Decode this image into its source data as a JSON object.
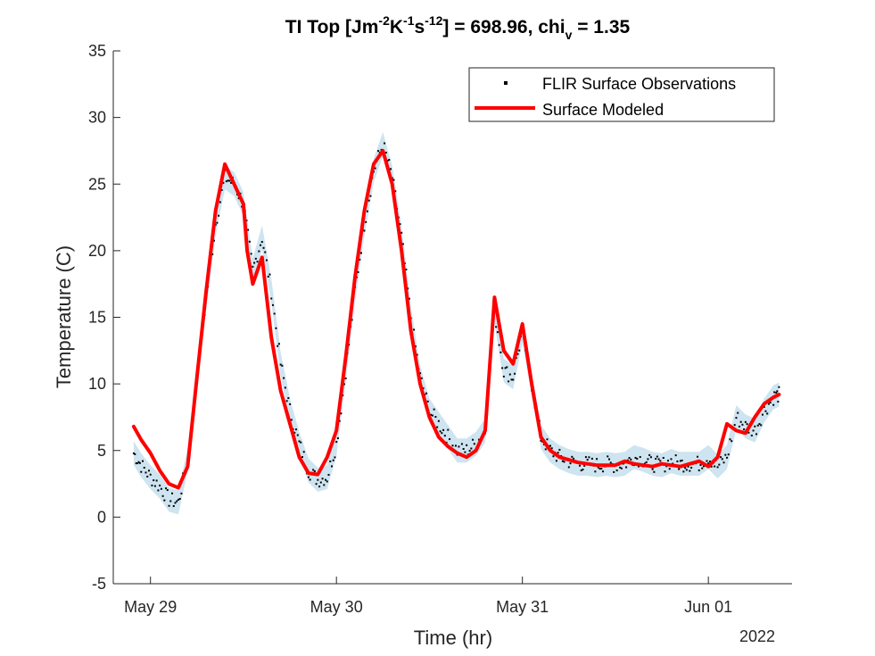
{
  "chart_data": {
    "type": "line",
    "title_main": "TI Top [Jm",
    "title_sup1": "-2",
    "title_k": "K",
    "title_sup2": "-1",
    "title_s": "s",
    "title_sup3": "-12",
    "title_eq": "] = 698.96, chi",
    "title_sub": "v",
    "title_tail": " = 1.35",
    "xlabel": "Time (hr)",
    "ylabel": "Temperature (C)",
    "year_label": "2022",
    "xlim": [
      -0.2,
      3.45
    ],
    "ylim": [
      -5,
      35
    ],
    "yticks": [
      -5,
      0,
      5,
      10,
      15,
      20,
      25,
      30,
      35
    ],
    "xticks": [
      {
        "value": 0,
        "label": "May 29"
      },
      {
        "value": 1,
        "label": "May 30"
      },
      {
        "value": 2,
        "label": "May 31"
      },
      {
        "value": 3,
        "label": "Jun 01"
      }
    ],
    "x_units": "days since May 29 00:00",
    "grid": false,
    "legend_position": "top-right",
    "colors": {
      "observations": "#000000",
      "modeled": "#ff0000",
      "uncertainty": "#a6cee3"
    },
    "series": [
      {
        "name": "FLIR Surface Observations",
        "style": "points",
        "x": [
          -0.09,
          -0.05,
          0.0,
          0.05,
          0.1,
          0.15,
          0.2,
          0.25,
          0.3,
          0.35,
          0.4,
          0.45,
          0.5,
          0.55,
          0.6,
          0.65,
          0.7,
          0.75,
          0.8,
          0.85,
          0.9,
          0.95,
          1.0,
          1.05,
          1.1,
          1.15,
          1.2,
          1.25,
          1.3,
          1.35,
          1.4,
          1.45,
          1.5,
          1.55,
          1.6,
          1.65,
          1.7,
          1.75,
          1.8,
          1.85,
          1.9,
          1.95,
          2.0,
          2.05,
          2.1,
          2.15,
          2.2,
          2.25,
          2.3,
          2.35,
          2.4,
          2.45,
          2.5,
          2.55,
          2.6,
          2.65,
          2.7,
          2.75,
          2.8,
          2.85,
          2.9,
          2.95,
          3.0,
          3.05,
          3.1,
          3.15,
          3.2,
          3.25,
          3.3,
          3.35,
          3.38
        ],
        "y": [
          4.8,
          3.9,
          3.0,
          2.3,
          1.3,
          1.1,
          4.3,
          10.5,
          16.5,
          22.0,
          25.5,
          25.0,
          23.5,
          18.5,
          21.0,
          17.0,
          11.5,
          8.0,
          5.5,
          3.5,
          2.8,
          3.0,
          5.5,
          11.0,
          17.0,
          22.0,
          26.0,
          28.0,
          25.5,
          21.0,
          15.0,
          10.5,
          8.0,
          7.0,
          6.0,
          5.0,
          5.0,
          5.5,
          6.5,
          15.5,
          11.0,
          10.5,
          14.0,
          10.0,
          6.0,
          5.0,
          4.5,
          4.2,
          4.0,
          4.0,
          3.9,
          4.0,
          3.9,
          4.0,
          4.5,
          4.3,
          4.0,
          3.9,
          4.2,
          4.0,
          4.0,
          4.0,
          4.5,
          3.8,
          4.5,
          7.5,
          6.8,
          6.5,
          8.0,
          9.0,
          9.2
        ]
      },
      {
        "name": "Surface Modeled",
        "style": "line",
        "x": [
          -0.09,
          -0.05,
          0.0,
          0.05,
          0.1,
          0.15,
          0.2,
          0.25,
          0.3,
          0.35,
          0.4,
          0.45,
          0.5,
          0.52,
          0.55,
          0.6,
          0.65,
          0.7,
          0.75,
          0.8,
          0.85,
          0.9,
          0.95,
          1.0,
          1.05,
          1.1,
          1.15,
          1.2,
          1.25,
          1.3,
          1.35,
          1.4,
          1.45,
          1.5,
          1.55,
          1.6,
          1.65,
          1.7,
          1.75,
          1.8,
          1.85,
          1.9,
          1.95,
          2.0,
          2.05,
          2.1,
          2.15,
          2.2,
          2.25,
          2.3,
          2.35,
          2.4,
          2.45,
          2.5,
          2.55,
          2.6,
          2.65,
          2.7,
          2.75,
          2.8,
          2.85,
          2.9,
          2.95,
          3.0,
          3.05,
          3.1,
          3.15,
          3.2,
          3.25,
          3.3,
          3.35,
          3.38
        ],
        "y": [
          6.8,
          5.8,
          4.8,
          3.5,
          2.5,
          2.2,
          3.8,
          10.5,
          17.0,
          23.0,
          26.5,
          25.0,
          23.5,
          20.0,
          17.5,
          19.5,
          13.5,
          9.5,
          7.0,
          4.5,
          3.3,
          3.2,
          4.5,
          6.5,
          12.0,
          18.0,
          23.0,
          26.5,
          27.5,
          25.0,
          20.0,
          14.0,
          10.0,
          7.5,
          6.0,
          5.3,
          4.8,
          4.5,
          5.0,
          6.5,
          16.5,
          12.5,
          11.5,
          14.5,
          10.0,
          6.0,
          5.0,
          4.5,
          4.3,
          4.1,
          4.0,
          3.9,
          3.9,
          3.9,
          4.2,
          4.0,
          3.9,
          3.8,
          4.0,
          3.9,
          3.8,
          4.0,
          4.2,
          3.8,
          4.5,
          7.0,
          6.5,
          6.3,
          7.5,
          8.5,
          9.0,
          9.2
        ]
      }
    ]
  }
}
